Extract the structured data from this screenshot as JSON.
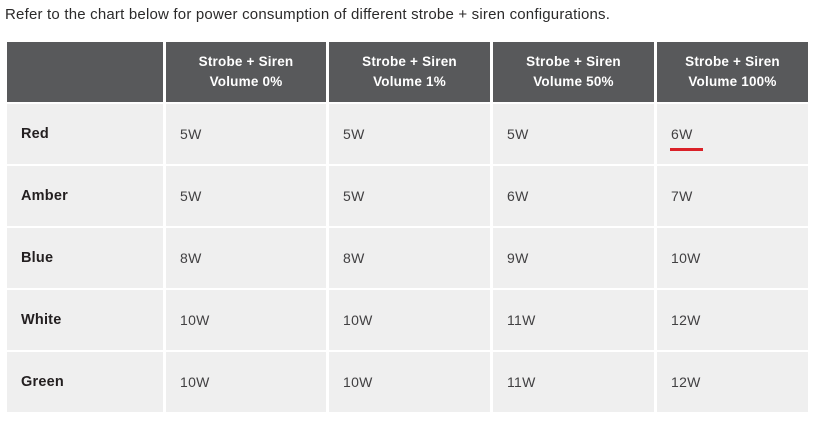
{
  "caption": "Refer to the chart below for power consumption of different strobe + siren configurations.",
  "colors": {
    "header_bg": "#58595b",
    "header_text": "#ffffff",
    "cell_bg": "#efefef",
    "body_text": "#414042",
    "label_text": "#231f20",
    "underline_red": "#da2128",
    "page_bg": "#ffffff"
  },
  "chart_data": {
    "type": "table",
    "title": "Refer to the chart below for power consumption of different strobe + siren configurations.",
    "columns": [
      "",
      "Strobe + Siren\nVolume 0%",
      "Strobe + Siren\nVolume 1%",
      "Strobe + Siren\nVolume 50%",
      "Strobe + Siren\nVolume 100%"
    ],
    "rows": [
      {
        "label": "Red",
        "values": [
          "5W",
          "5W",
          "5W",
          "6W"
        ]
      },
      {
        "label": "Amber",
        "values": [
          "5W",
          "5W",
          "6W",
          "7W"
        ]
      },
      {
        "label": "Blue",
        "values": [
          "8W",
          "8W",
          "9W",
          "10W"
        ]
      },
      {
        "label": "White",
        "values": [
          "10W",
          "10W",
          "11W",
          "12W"
        ]
      },
      {
        "label": "Green",
        "values": [
          "10W",
          "10W",
          "11W",
          "12W"
        ]
      }
    ],
    "annotations": [
      {
        "type": "red-underline",
        "row_label": "Red",
        "column_index": 4,
        "value": "6W"
      }
    ],
    "layout": {
      "header_style": "dark-gray",
      "cell_style": "light-gray",
      "gutters": "white"
    }
  }
}
